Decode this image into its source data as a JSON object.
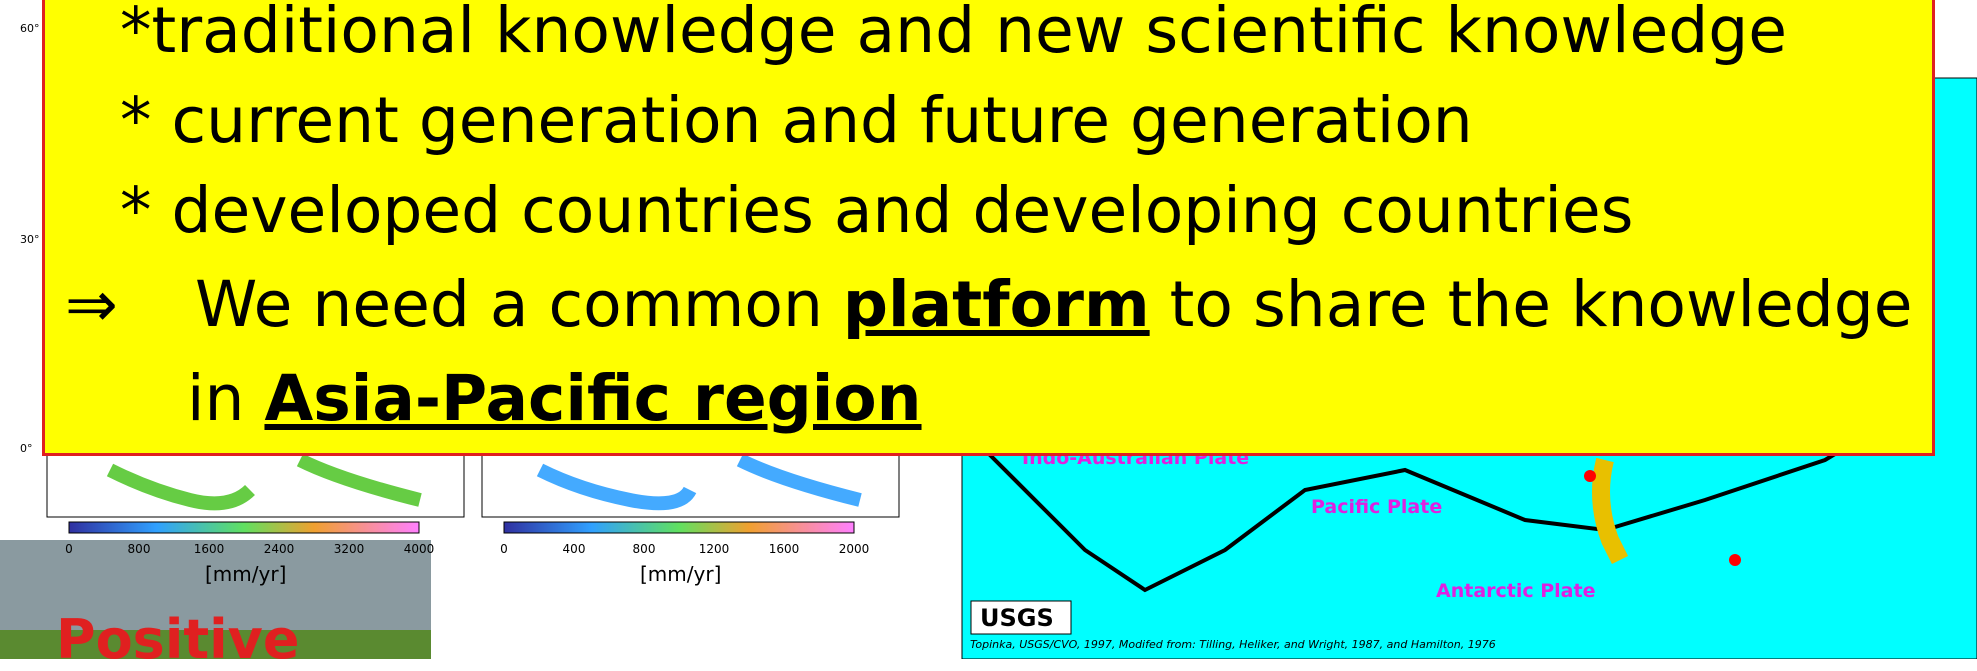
{
  "slide": {
    "box": {
      "line1": "*traditional knowledge and new scientific knowledge",
      "line2": "* current generation and future generation",
      "line3": "* developed countries and developing countries",
      "arrow": "⇒",
      "line4_pre": "We need a common ",
      "line4_bold": "platform",
      "line4_post": " to share the knowledge",
      "line5_pre": "in ",
      "line5_bold": "Asia-Pacific region"
    },
    "latitude_labels": [
      "60°",
      "30°",
      "0°"
    ],
    "map_left": {
      "colorbar_ticks": [
        "0",
        "800",
        "1600",
        "2400",
        "3200",
        "4000"
      ],
      "unit": "[mm/yr]"
    },
    "map_middle": {
      "colorbar_ticks": [
        "0",
        "400",
        "800",
        "1200",
        "1600",
        "2000"
      ],
      "unit": "[mm/yr]"
    },
    "map_right": {
      "plates": [
        "Indo-Australian Plate",
        "Pacific Plate",
        "Antarctic Plate"
      ],
      "logo": "USGS",
      "credit": "Topinka, USGS/CVO, 1997, Modifed from: Tilling, Heliker, and Wright, 1987, and Hamilton, 1976"
    },
    "photo": {
      "caption": "Positive"
    }
  }
}
